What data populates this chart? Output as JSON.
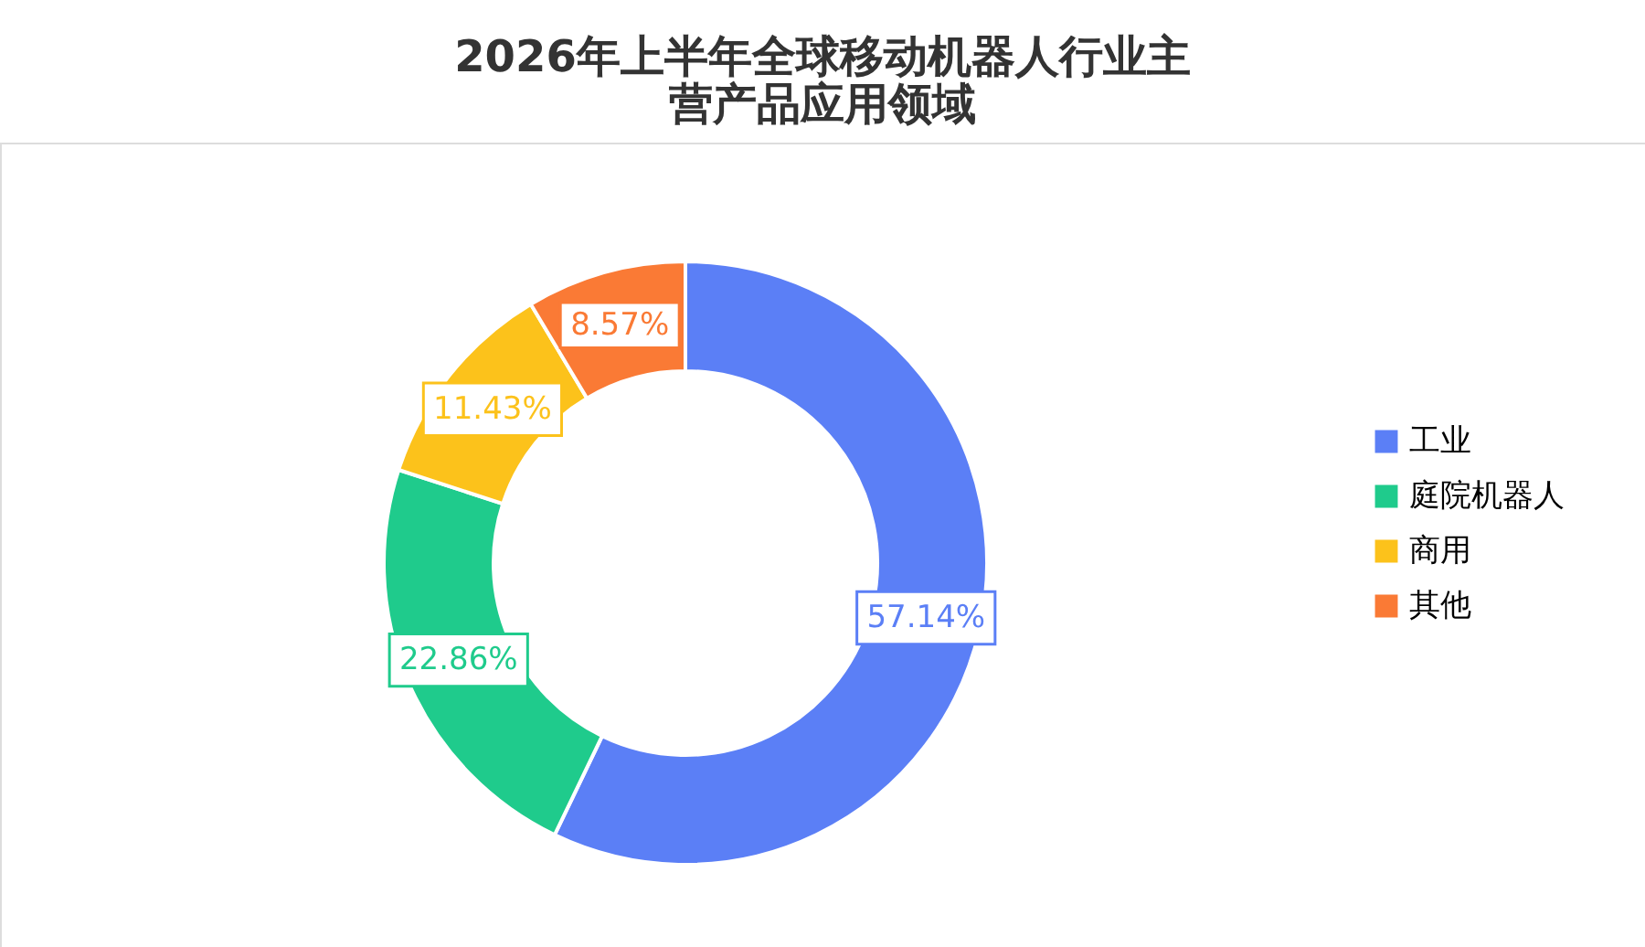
{
  "chart_data": {
    "type": "donut",
    "title": "2026年上半年全球移动机器人行业主营产品应用领域",
    "categories": [
      "工业",
      "庭院机器人",
      "商用",
      "其他"
    ],
    "values": [
      57.14,
      22.86,
      11.43,
      8.57
    ],
    "colors": [
      "#5b7ff6",
      "#1fcb8c",
      "#fcc21b",
      "#fa7a35"
    ],
    "value_labels": [
      "57.14%",
      "22.86%",
      "11.43%",
      "8.57%"
    ],
    "legend": "right"
  }
}
